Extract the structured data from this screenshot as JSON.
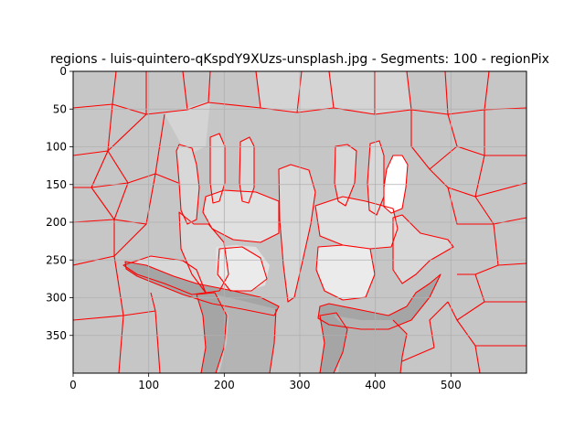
{
  "chart_data": {
    "type": "segmentation-image",
    "title": "regions - luis-quintero-qKspdY9XUzs-unsplash.jpg - Segments: 100 - regionPix",
    "xlabel": "",
    "ylabel": "",
    "xlim": [
      0,
      600
    ],
    "ylim": [
      400,
      0
    ],
    "x_ticks": [
      0,
      100,
      200,
      300,
      400,
      500
    ],
    "y_ticks": [
      0,
      50,
      100,
      150,
      200,
      250,
      300,
      350
    ],
    "grid": true,
    "colors": {
      "background": "#c6c6c6",
      "upper": "#d4d4d4",
      "fingers": "#d8d8d8",
      "palm": "#e0e0e0",
      "palm_center": "#ebebeb",
      "white": "#ffffff",
      "sleeve": "#a5a5a5",
      "arm": "#b4b4b4",
      "boundary": "#ff0000",
      "grid": "#b0b0b0"
    }
  }
}
